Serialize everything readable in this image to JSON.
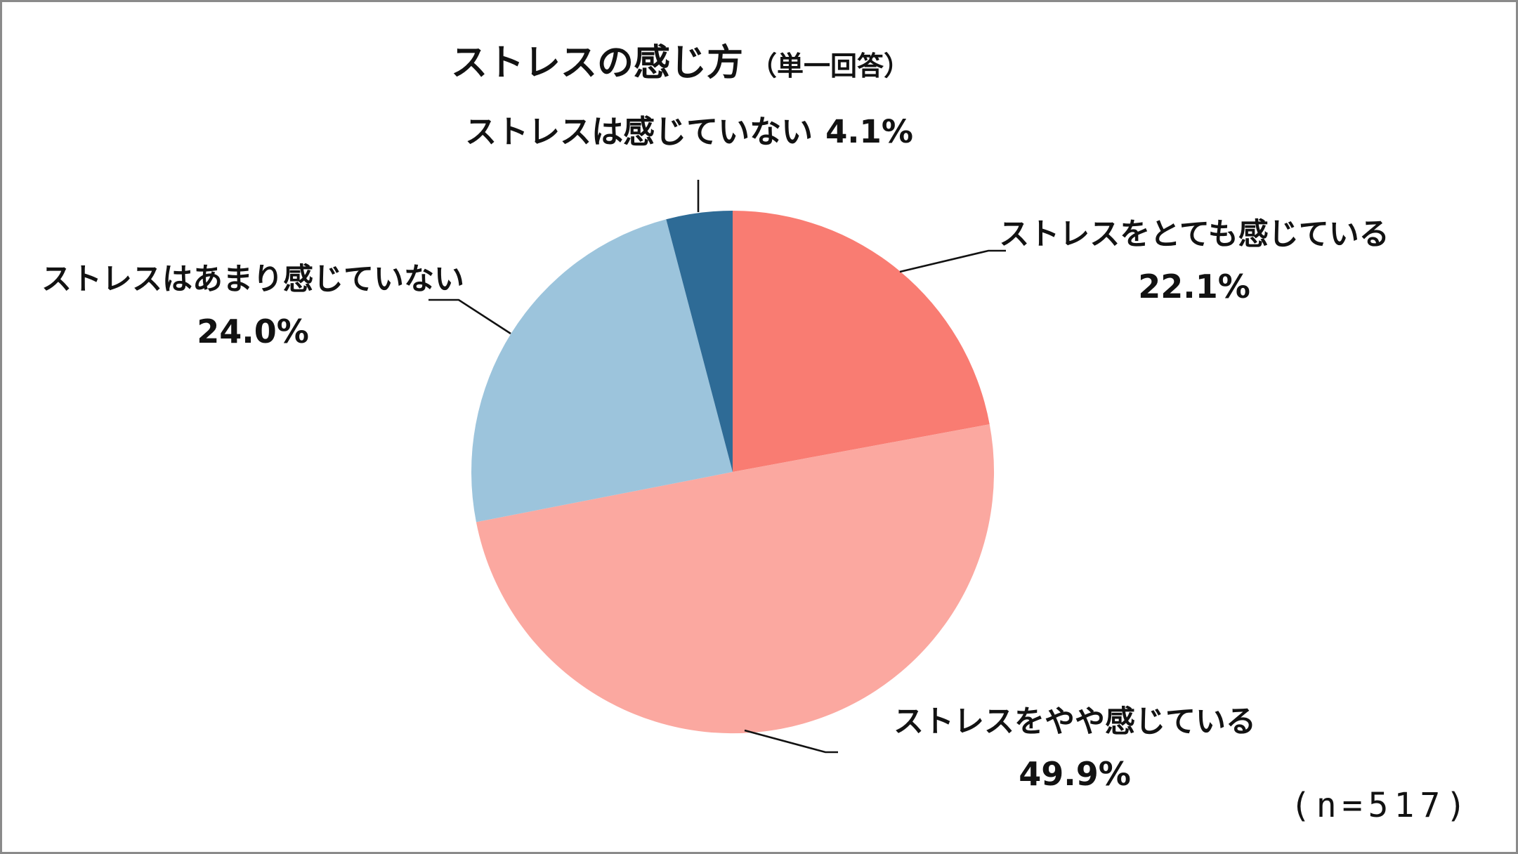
{
  "title": {
    "main": "ストレスの感じ方",
    "sub": "（単一回答）"
  },
  "sample_label": "(n=517)",
  "labels": {
    "none": {
      "text": "ストレスは感じていない",
      "value": "4.1%"
    },
    "very": {
      "text": "ストレスをとても感じている",
      "value": "22.1%"
    },
    "not_much": {
      "text": "ストレスはあまり感じていない",
      "value": "24.0%"
    },
    "slightly": {
      "text": "ストレスをやや感じている",
      "value": "49.9%"
    }
  },
  "colors": {
    "very": "#F97C72",
    "slightly": "#FBA8A0",
    "not_much": "#9CC4DC",
    "none": "#2E6B96",
    "leader_line": "#121212",
    "frame_border": "#8a8a8a",
    "background": "#ffffff"
  },
  "chart_data": {
    "type": "pie",
    "title": "ストレスの感じ方（単一回答）",
    "categories": [
      "ストレスをとても感じている",
      "ストレスをやや感じている",
      "ストレスはあまり感じていない",
      "ストレスは感じていない"
    ],
    "keys": [
      "very",
      "slightly",
      "not-much",
      "none"
    ],
    "values": [
      22.1,
      49.9,
      24.0,
      4.1
    ],
    "unit": "%",
    "colors": [
      "#F97C72",
      "#FBA8A0",
      "#9CC4DC",
      "#2E6B96"
    ],
    "start_angle_deg": 0,
    "direction": "clockwise",
    "legend": "none (direct callout labels with leader lines)",
    "sample_size": 517
  }
}
